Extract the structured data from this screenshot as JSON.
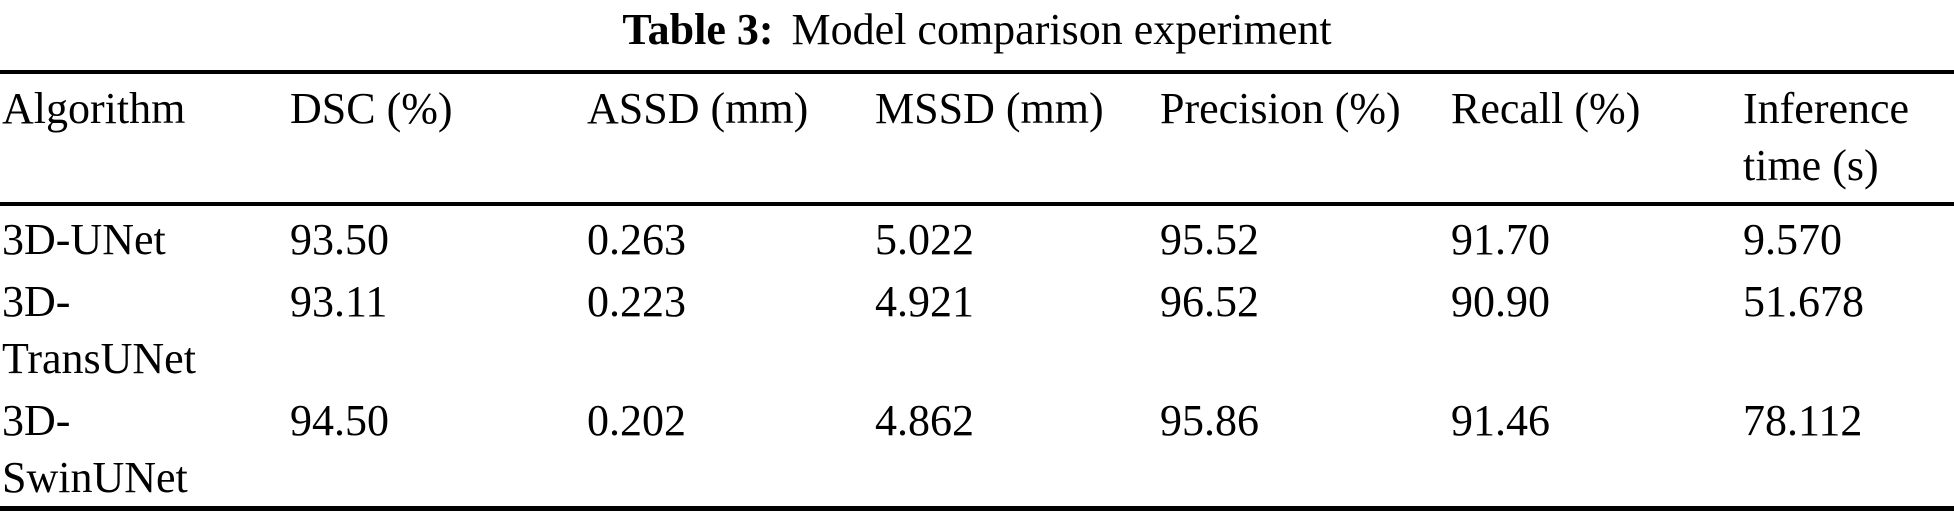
{
  "caption": {
    "label": "Table 3:",
    "text": "Model comparison experiment"
  },
  "table": {
    "columns": {
      "algorithm": "Algorithm",
      "dsc": "DSC (%)",
      "assd": "ASSD (mm)",
      "mssd": "MSSD (mm)",
      "precision": "Precision (%)",
      "recall": "Recall (%)",
      "inference_time": "Inference time (s)"
    },
    "rows": [
      {
        "algorithm": "3D-UNet",
        "dsc": "93.50",
        "assd": "0.263",
        "mssd": "5.022",
        "precision": "95.52",
        "recall": "91.70",
        "inference_time": "9.570"
      },
      {
        "algorithm": "3D-TransUNet",
        "dsc": "93.11",
        "assd": "0.223",
        "mssd": "4.921",
        "precision": "96.52",
        "recall": "90.90",
        "inference_time": "51.678"
      },
      {
        "algorithm": "3D-SwinUNet",
        "dsc": "94.50",
        "assd": "0.202",
        "mssd": "4.862",
        "precision": "95.86",
        "recall": "91.46",
        "inference_time": "78.112"
      }
    ]
  },
  "chart_data": {
    "type": "table",
    "title": "Table 3: Model comparison experiment",
    "columns": [
      "Algorithm",
      "DSC (%)",
      "ASSD (mm)",
      "MSSD (mm)",
      "Precision (%)",
      "Recall (%)",
      "Inference time (s)"
    ],
    "rows": [
      [
        "3D-UNet",
        93.5,
        0.263,
        5.022,
        95.52,
        91.7,
        9.57
      ],
      [
        "3D-TransUNet",
        93.11,
        0.223,
        4.921,
        96.52,
        90.9,
        51.678
      ],
      [
        "3D-SwinUNet",
        94.5,
        0.202,
        4.862,
        95.86,
        91.46,
        78.112
      ]
    ]
  }
}
